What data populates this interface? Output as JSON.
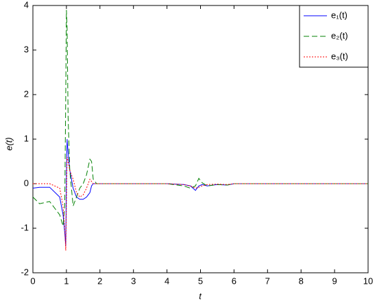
{
  "chart_data": {
    "type": "line",
    "xlabel": "t",
    "ylabel": "e(t)",
    "x": [
      0,
      0.2,
      0.5,
      0.8,
      0.9,
      0.95,
      0.98,
      1.0,
      1.02,
      1.05,
      1.1,
      1.2,
      1.3,
      1.4,
      1.5,
      1.6,
      1.7,
      1.75,
      1.8,
      1.9,
      2.0,
      3,
      4,
      4.5,
      4.7,
      4.85,
      4.95,
      5.05,
      5.2,
      5.5,
      5.8,
      6,
      7,
      8,
      9,
      10
    ],
    "series": [
      {
        "name": "e₁(t)",
        "color": "#0000ff",
        "dash": "none",
        "values": [
          -0.1,
          -0.08,
          -0.08,
          -0.3,
          -0.7,
          -1.1,
          -1.4,
          0.2,
          1.0,
          0.7,
          0.3,
          -0.1,
          -0.3,
          -0.35,
          -0.35,
          -0.3,
          -0.2,
          -0.05,
          0,
          0,
          0,
          0,
          0,
          -0.02,
          -0.05,
          -0.15,
          -0.05,
          -0.02,
          -0.05,
          -0.02,
          -0.03,
          0,
          0,
          0,
          0,
          0
        ]
      },
      {
        "name": "e₂(t)",
        "color": "#008000",
        "dash": "8 4",
        "values": [
          -0.3,
          -0.45,
          -0.4,
          -0.7,
          -0.95,
          -0.5,
          2.0,
          3.9,
          3.5,
          1.5,
          0.3,
          -0.5,
          -0.3,
          -0.1,
          0,
          0.2,
          0.55,
          0.5,
          0.1,
          0,
          0,
          0,
          0,
          -0.05,
          -0.1,
          -0.05,
          0.12,
          0.02,
          -0.05,
          -0.02,
          -0.03,
          0,
          0,
          0,
          0,
          0
        ]
      },
      {
        "name": "e₃(t)",
        "color": "#ff0000",
        "dash": "2 2",
        "values": [
          0,
          0,
          0,
          -0.1,
          -0.5,
          -1.0,
          -1.5,
          -0.5,
          0.6,
          0.5,
          0.3,
          0.1,
          -0.2,
          -0.3,
          -0.25,
          -0.1,
          0.1,
          0.05,
          0,
          0,
          0,
          0,
          0,
          -0.02,
          -0.05,
          -0.1,
          -0.08,
          -0.05,
          -0.02,
          -0.01,
          -0.02,
          0,
          0,
          0,
          0,
          0
        ]
      }
    ],
    "xlim": [
      0,
      10
    ],
    "xticks": [
      0,
      1,
      2,
      3,
      4,
      5,
      6,
      7,
      8,
      9,
      10
    ],
    "ylim": [
      -2,
      4
    ],
    "yticks": [
      -2,
      -1,
      0,
      1,
      2,
      3,
      4
    ],
    "grid": false,
    "legend": "top-right"
  }
}
